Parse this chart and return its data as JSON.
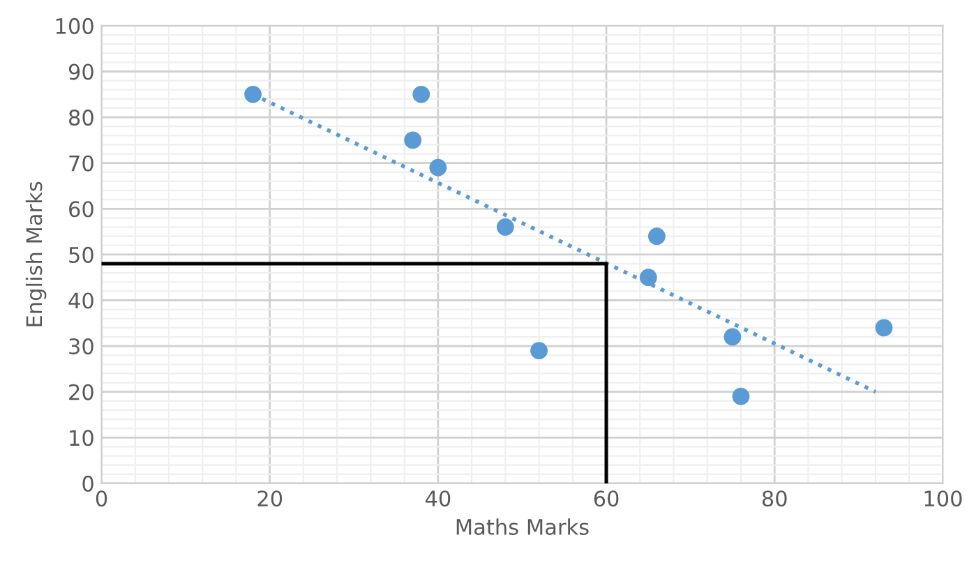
{
  "chart_data": {
    "type": "scatter",
    "xlabel": "Maths Marks",
    "ylabel": "English Marks",
    "xlim": [
      0,
      100
    ],
    "xticks": [
      0,
      20,
      40,
      60,
      80,
      100
    ],
    "ylim": [
      0,
      100
    ],
    "yticks": [
      0,
      10,
      20,
      30,
      40,
      50,
      60,
      70,
      80,
      90,
      100
    ],
    "grid": true,
    "series": [
      {
        "color": "#5b9bd5",
        "marker": "circle",
        "x": [
          18,
          38,
          37,
          40,
          48,
          52,
          66,
          65,
          75,
          76,
          93
        ],
        "values": [
          85,
          85,
          75,
          69,
          56,
          29,
          54,
          45,
          32,
          19,
          34
        ]
      },
      {
        "type": "line",
        "color": "#5b9bd5",
        "line_style": "dotted",
        "x": [
          18,
          92
        ],
        "values": [
          85,
          20
        ]
      },
      {
        "type": "line",
        "color": "#000000",
        "line_style": "solid",
        "x": [
          0,
          60,
          60
        ],
        "values": [
          48,
          48,
          0
        ]
      }
    ]
  }
}
